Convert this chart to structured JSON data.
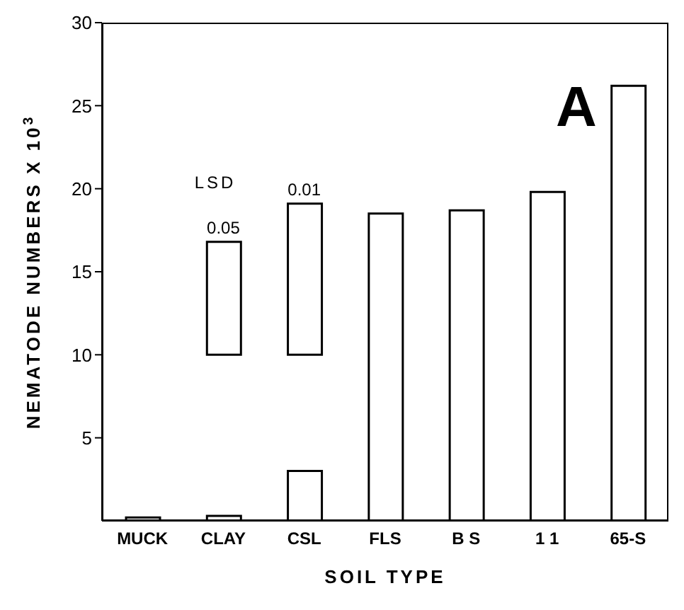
{
  "chart_data": {
    "type": "bar",
    "xlabel": "SOIL TYPE",
    "ylabel": "NEMATODE NUMBERS X 10$^{3}$",
    "categories": [
      "MUCK",
      "CLAY",
      "CSL",
      "FLS",
      "B S",
      "1 1",
      "65-S"
    ],
    "series": [
      {
        "color": "#000000",
        "values": [
          0.2,
          0.3,
          3.0,
          18.5,
          18.7,
          19.8,
          26.2
        ]
      },
      {
        "color": "#000000",
        "base": [
          null,
          10,
          10,
          null,
          null,
          null,
          null
        ],
        "values": [
          null,
          6.8,
          9.1,
          null,
          null,
          null,
          null
        ]
      }
    ],
    "ylim": [
      0,
      30
    ],
    "yticks": [
      5,
      10,
      15,
      20,
      25,
      30
    ],
    "grid": false,
    "annotations": [
      "LSD",
      "A",
      {
        "text": "0.05",
        "x": "CLAY",
        "y": 16.8
      },
      {
        "text": "0.01",
        "x": "CSL",
        "y": 19.1
      }
    ]
  }
}
